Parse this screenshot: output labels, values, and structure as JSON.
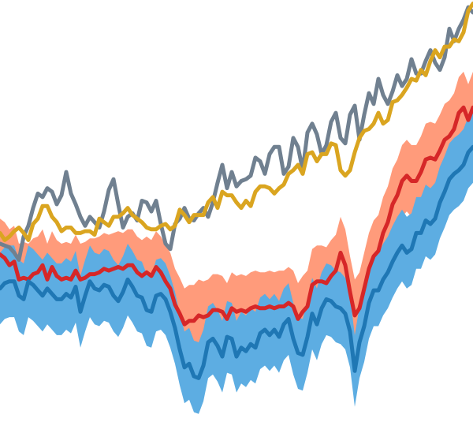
{
  "chart_data": {
    "type": "line",
    "title": "",
    "xlabel": "",
    "ylabel": "",
    "grid": false,
    "legend": "none",
    "xlim": [
      0,
      100
    ],
    "ylim": [
      -1.5,
      1.0
    ],
    "x": [
      0,
      1,
      2,
      3,
      4,
      5,
      6,
      7,
      8,
      9,
      10,
      11,
      12,
      13,
      14,
      15,
      16,
      17,
      18,
      19,
      20,
      21,
      22,
      23,
      24,
      25,
      26,
      27,
      28,
      29,
      30,
      31,
      32,
      33,
      34,
      35,
      36,
      37,
      38,
      39,
      40,
      41,
      42,
      43,
      44,
      45,
      46,
      47,
      48,
      49,
      50,
      51,
      52,
      53,
      54,
      55,
      56,
      57,
      58,
      59,
      60,
      61,
      62,
      63,
      64,
      65,
      66,
      67,
      68,
      69,
      70,
      71,
      72,
      73,
      74,
      75,
      76,
      77,
      78,
      79,
      80,
      81,
      82,
      83,
      84,
      85,
      86,
      87,
      88,
      89,
      90,
      91,
      92,
      93,
      94,
      95,
      96,
      97,
      98,
      99,
      100
    ],
    "series": [
      {
        "color": "#708090",
        "values": [
          -0.36,
          -0.37,
          -0.38,
          -0.41,
          -0.45,
          -0.32,
          -0.26,
          -0.16,
          -0.08,
          -0.1,
          -0.05,
          -0.07,
          -0.14,
          -0.09,
          0.04,
          -0.08,
          -0.14,
          -0.21,
          -0.26,
          -0.21,
          -0.24,
          -0.27,
          -0.18,
          -0.06,
          0.0,
          -0.14,
          -0.27,
          -0.21,
          -0.19,
          -0.23,
          -0.12,
          -0.13,
          -0.18,
          -0.12,
          -0.25,
          -0.36,
          -0.39,
          -0.25,
          -0.22,
          -0.16,
          -0.22,
          -0.23,
          -0.19,
          -0.16,
          -0.21,
          -0.13,
          -0.02,
          0.08,
          -0.05,
          0.04,
          -0.04,
          -0.01,
          0.0,
          0.02,
          0.12,
          0.1,
          0.03,
          0.14,
          0.18,
          0.18,
          0.03,
          0.07,
          0.23,
          0.18,
          0.05,
          0.26,
          0.31,
          0.25,
          0.14,
          0.19,
          0.32,
          0.37,
          0.23,
          0.2,
          0.36,
          0.41,
          0.22,
          0.36,
          0.48,
          0.42,
          0.56,
          0.47,
          0.42,
          0.49,
          0.58,
          0.52,
          0.56,
          0.67,
          0.59,
          0.59,
          0.66,
          0.72,
          0.65,
          0.61,
          0.68,
          0.84,
          0.77,
          0.84,
          0.89,
          0.96,
          0.93
        ]
      },
      {
        "color": "#DAA520",
        "values": [
          -0.3,
          -0.34,
          -0.32,
          -0.29,
          -0.27,
          -0.3,
          -0.34,
          -0.25,
          -0.22,
          -0.15,
          -0.15,
          -0.21,
          -0.24,
          -0.29,
          -0.27,
          -0.27,
          -0.3,
          -0.3,
          -0.29,
          -0.29,
          -0.31,
          -0.22,
          -0.24,
          -0.26,
          -0.21,
          -0.21,
          -0.19,
          -0.16,
          -0.2,
          -0.22,
          -0.24,
          -0.27,
          -0.28,
          -0.28,
          -0.26,
          -0.25,
          -0.28,
          -0.26,
          -0.17,
          -0.2,
          -0.24,
          -0.2,
          -0.2,
          -0.2,
          -0.13,
          -0.1,
          -0.16,
          -0.07,
          -0.09,
          -0.09,
          -0.13,
          -0.16,
          -0.12,
          -0.15,
          -0.07,
          -0.04,
          -0.04,
          -0.05,
          -0.08,
          -0.05,
          -0.03,
          0.03,
          0.05,
          0.08,
          0.03,
          0.14,
          0.15,
          0.1,
          0.14,
          0.14,
          0.2,
          0.19,
          0.05,
          0.02,
          0.05,
          0.15,
          0.23,
          0.27,
          0.28,
          0.31,
          0.37,
          0.31,
          0.33,
          0.43,
          0.44,
          0.47,
          0.51,
          0.56,
          0.55,
          0.61,
          0.58,
          0.66,
          0.72,
          0.68,
          0.74,
          0.74,
          0.78,
          0.77,
          0.82,
          0.94,
          0.98
        ]
      },
      {
        "color": "#D62728",
        "values": [
          -0.42,
          -0.44,
          -0.48,
          -0.46,
          -0.56,
          -0.55,
          -0.56,
          -0.53,
          -0.52,
          -0.48,
          -0.56,
          -0.49,
          -0.54,
          -0.56,
          -0.55,
          -0.56,
          -0.51,
          -0.56,
          -0.55,
          -0.53,
          -0.53,
          -0.52,
          -0.5,
          -0.51,
          -0.5,
          -0.49,
          -0.5,
          -0.48,
          -0.48,
          -0.52,
          -0.54,
          -0.52,
          -0.54,
          -0.49,
          -0.52,
          -0.57,
          -0.61,
          -0.7,
          -0.75,
          -0.81,
          -0.79,
          -0.79,
          -0.76,
          -0.77,
          -0.76,
          -0.73,
          -0.73,
          -0.74,
          -0.78,
          -0.72,
          -0.74,
          -0.73,
          -0.74,
          -0.72,
          -0.71,
          -0.72,
          -0.72,
          -0.71,
          -0.72,
          -0.71,
          -0.71,
          -0.69,
          -0.71,
          -0.78,
          -0.74,
          -0.71,
          -0.59,
          -0.57,
          -0.57,
          -0.58,
          -0.54,
          -0.51,
          -0.41,
          -0.48,
          -0.63,
          -0.76,
          -0.72,
          -0.61,
          -0.5,
          -0.43,
          -0.4,
          -0.3,
          -0.24,
          -0.14,
          -0.09,
          -0.01,
          0.02,
          -0.01,
          -0.01,
          0.04,
          0.11,
          0.12,
          0.11,
          0.16,
          0.22,
          0.24,
          0.28,
          0.37,
          0.4,
          0.33,
          0.4
        ]
      },
      {
        "color": "#1F77B4",
        "values": [
          -0.61,
          -0.58,
          -0.57,
          -0.57,
          -0.65,
          -0.67,
          -0.57,
          -0.59,
          -0.62,
          -0.65,
          -0.61,
          -0.64,
          -0.67,
          -0.67,
          -0.64,
          -0.66,
          -0.6,
          -0.74,
          -0.65,
          -0.57,
          -0.61,
          -0.62,
          -0.59,
          -0.6,
          -0.65,
          -0.68,
          -0.63,
          -0.56,
          -0.6,
          -0.65,
          -0.66,
          -0.73,
          -0.74,
          -0.65,
          -0.64,
          -0.67,
          -0.74,
          -0.83,
          -0.95,
          -1.05,
          -1.03,
          -1.1,
          -1.11,
          -1.04,
          -0.91,
          -0.89,
          -0.93,
          -0.99,
          -0.88,
          -0.89,
          -0.99,
          -0.94,
          -0.96,
          -0.92,
          -0.94,
          -0.86,
          -0.84,
          -0.87,
          -0.84,
          -0.88,
          -0.81,
          -0.78,
          -0.89,
          -0.97,
          -0.98,
          -0.88,
          -0.75,
          -0.81,
          -0.72,
          -0.67,
          -0.68,
          -0.71,
          -0.72,
          -0.75,
          -0.85,
          -1.07,
          -0.91,
          -0.82,
          -0.69,
          -0.62,
          -0.62,
          -0.56,
          -0.52,
          -0.46,
          -0.41,
          -0.37,
          -0.41,
          -0.39,
          -0.3,
          -0.3,
          -0.23,
          -0.25,
          -0.22,
          -0.13,
          -0.07,
          -0.0,
          0.03,
          0.05,
          0.08,
          0.15,
          0.18
        ]
      }
    ],
    "bands": [
      {
        "color": "#FF9B7B",
        "upper": [
          -0.22,
          -0.24,
          -0.28,
          -0.26,
          -0.36,
          -0.35,
          -0.36,
          -0.33,
          -0.32,
          -0.28,
          -0.36,
          -0.29,
          -0.34,
          -0.36,
          -0.35,
          -0.36,
          -0.31,
          -0.36,
          -0.35,
          -0.33,
          -0.33,
          -0.32,
          -0.3,
          -0.31,
          -0.3,
          -0.29,
          -0.3,
          -0.28,
          -0.28,
          -0.32,
          -0.34,
          -0.32,
          -0.34,
          -0.29,
          -0.32,
          -0.37,
          -0.41,
          -0.5,
          -0.55,
          -0.61,
          -0.59,
          -0.59,
          -0.56,
          -0.57,
          -0.56,
          -0.53,
          -0.53,
          -0.54,
          -0.58,
          -0.52,
          -0.54,
          -0.53,
          -0.54,
          -0.52,
          -0.51,
          -0.52,
          -0.52,
          -0.51,
          -0.52,
          -0.51,
          -0.51,
          -0.49,
          -0.51,
          -0.58,
          -0.54,
          -0.51,
          -0.39,
          -0.37,
          -0.37,
          -0.38,
          -0.34,
          -0.31,
          -0.21,
          -0.28,
          -0.43,
          -0.56,
          -0.52,
          -0.41,
          -0.3,
          -0.23,
          -0.2,
          -0.1,
          -0.04,
          0.06,
          0.11,
          0.19,
          0.22,
          0.19,
          0.19,
          0.24,
          0.31,
          0.32,
          0.31,
          0.36,
          0.42,
          0.44,
          0.48,
          0.57,
          0.6,
          0.53,
          0.6
        ],
        "lower": [
          -0.62,
          -0.64,
          -0.68,
          -0.66,
          -0.76,
          -0.75,
          -0.76,
          -0.73,
          -0.72,
          -0.68,
          -0.76,
          -0.69,
          -0.74,
          -0.76,
          -0.75,
          -0.76,
          -0.71,
          -0.76,
          -0.75,
          -0.73,
          -0.73,
          -0.72,
          -0.7,
          -0.71,
          -0.7,
          -0.69,
          -0.7,
          -0.68,
          -0.68,
          -0.72,
          -0.74,
          -0.72,
          -0.74,
          -0.69,
          -0.72,
          -0.77,
          -0.81,
          -0.9,
          -0.95,
          -1.01,
          -0.99,
          -0.99,
          -0.96,
          -0.97,
          -0.96,
          -0.93,
          -0.93,
          -0.94,
          -0.98,
          -0.92,
          -0.94,
          -0.93,
          -0.94,
          -0.92,
          -0.91,
          -0.92,
          -0.92,
          -0.91,
          -0.92,
          -0.91,
          -0.91,
          -0.89,
          -0.91,
          -0.98,
          -0.94,
          -0.91,
          -0.79,
          -0.77,
          -0.77,
          -0.78,
          -0.74,
          -0.71,
          -0.61,
          -0.68,
          -0.83,
          -0.96,
          -0.92,
          -0.81,
          -0.7,
          -0.63,
          -0.6,
          -0.5,
          -0.44,
          -0.34,
          -0.29,
          -0.21,
          -0.18,
          -0.21,
          -0.21,
          -0.16,
          -0.09,
          -0.08,
          -0.09,
          -0.04,
          0.02,
          0.04,
          0.08,
          0.17,
          0.2,
          0.13,
          0.2
        ]
      },
      {
        "color": "#5DADE2",
        "upper": [
          -0.41,
          -0.38,
          -0.37,
          -0.37,
          -0.45,
          -0.47,
          -0.37,
          -0.39,
          -0.42,
          -0.45,
          -0.41,
          -0.44,
          -0.47,
          -0.47,
          -0.44,
          -0.46,
          -0.4,
          -0.54,
          -0.45,
          -0.37,
          -0.41,
          -0.42,
          -0.39,
          -0.4,
          -0.45,
          -0.48,
          -0.43,
          -0.36,
          -0.4,
          -0.45,
          -0.46,
          -0.53,
          -0.54,
          -0.45,
          -0.44,
          -0.47,
          -0.54,
          -0.63,
          -0.75,
          -0.85,
          -0.83,
          -0.9,
          -0.91,
          -0.84,
          -0.71,
          -0.69,
          -0.73,
          -0.79,
          -0.68,
          -0.69,
          -0.79,
          -0.74,
          -0.76,
          -0.72,
          -0.74,
          -0.66,
          -0.64,
          -0.67,
          -0.64,
          -0.68,
          -0.61,
          -0.58,
          -0.69,
          -0.77,
          -0.78,
          -0.68,
          -0.55,
          -0.61,
          -0.52,
          -0.47,
          -0.48,
          -0.51,
          -0.52,
          -0.55,
          -0.65,
          -0.87,
          -0.71,
          -0.62,
          -0.49,
          -0.42,
          -0.42,
          -0.36,
          -0.32,
          -0.26,
          -0.21,
          -0.17,
          -0.21,
          -0.19,
          -0.1,
          -0.1,
          -0.03,
          -0.05,
          -0.02,
          0.07,
          0.13,
          0.2,
          0.23,
          0.25,
          0.28,
          0.35,
          0.38
        ],
        "lower": [
          -0.81,
          -0.78,
          -0.77,
          -0.77,
          -0.85,
          -0.87,
          -0.77,
          -0.79,
          -0.82,
          -0.85,
          -0.81,
          -0.84,
          -0.87,
          -0.87,
          -0.84,
          -0.86,
          -0.8,
          -0.94,
          -0.85,
          -0.77,
          -0.81,
          -0.82,
          -0.79,
          -0.8,
          -0.85,
          -0.88,
          -0.83,
          -0.76,
          -0.8,
          -0.85,
          -0.86,
          -0.93,
          -0.94,
          -0.85,
          -0.84,
          -0.87,
          -0.94,
          -1.03,
          -1.15,
          -1.25,
          -1.23,
          -1.3,
          -1.31,
          -1.24,
          -1.11,
          -1.09,
          -1.13,
          -1.19,
          -1.08,
          -1.09,
          -1.19,
          -1.14,
          -1.16,
          -1.12,
          -1.14,
          -1.06,
          -1.04,
          -1.07,
          -1.04,
          -1.08,
          -1.01,
          -0.98,
          -1.09,
          -1.17,
          -1.18,
          -1.08,
          -0.95,
          -1.01,
          -0.92,
          -0.87,
          -0.88,
          -0.91,
          -0.92,
          -0.95,
          -1.05,
          -1.27,
          -1.11,
          -1.02,
          -0.89,
          -0.82,
          -0.82,
          -0.76,
          -0.72,
          -0.66,
          -0.61,
          -0.57,
          -0.61,
          -0.59,
          -0.5,
          -0.5,
          -0.43,
          -0.45,
          -0.42,
          -0.33,
          -0.27,
          -0.2,
          -0.17,
          -0.15,
          -0.12,
          -0.05,
          -0.02
        ]
      }
    ]
  }
}
